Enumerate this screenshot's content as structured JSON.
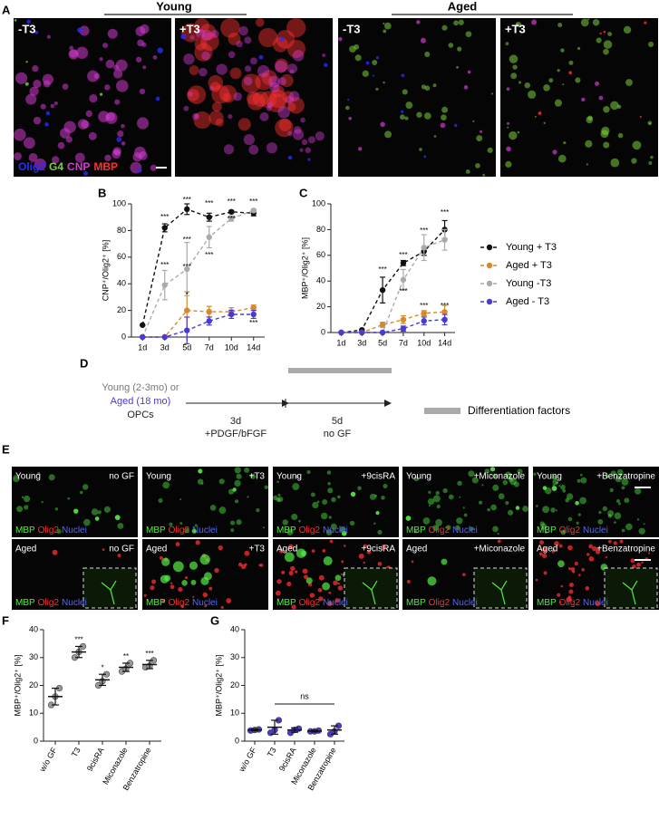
{
  "figure": {
    "panel_labels": [
      "A",
      "B",
      "C",
      "D",
      "E",
      "F",
      "G"
    ],
    "panel_a": {
      "groups": [
        "Young",
        "Aged"
      ],
      "images": [
        "-T3",
        "+T3",
        "-T3",
        "+T3"
      ],
      "channels": [
        {
          "name": "Olig2",
          "color": "#2b2bff"
        },
        {
          "name": "G4",
          "color": "#7ccf3a"
        },
        {
          "name": "CNP",
          "color": "#d23bd2"
        },
        {
          "name": "MBP",
          "color": "#ff3030"
        }
      ]
    },
    "panel_d": {
      "source_young": "Young (2-3mo) or",
      "source_aged": "Aged (18 mo)",
      "cells": "OPCs",
      "step1_time": "3d",
      "step1_medium": "+PDGF/bFGF",
      "step2_time": "5d",
      "step2_medium": "no GF",
      "legend": "Differentiation factors"
    },
    "panel_e": {
      "rows": [
        "Young",
        "Aged"
      ],
      "conditions": [
        "no GF",
        "+T3",
        "+9cisRA",
        "+Miconazole",
        "+Benzatropine"
      ],
      "channels": [
        {
          "name": "MBP",
          "color": "#55ee44"
        },
        {
          "name": "Olig2",
          "color": "#ff3030"
        },
        {
          "name": "Nuclei",
          "color": "#5566ff"
        }
      ]
    }
  },
  "chart_data": [
    {
      "type": "line",
      "ylabel": "CNP⁺/Olig2⁺ [%]",
      "categories": [
        "1d",
        "3d",
        "5d",
        "7d",
        "10d",
        "14d"
      ],
      "ylim": [
        0,
        100
      ],
      "yticks": [
        0,
        20,
        40,
        60,
        80,
        100
      ],
      "series": [
        {
          "color": "#111111",
          "values": [
            9,
            82,
            96,
            90,
            94,
            93
          ],
          "errors": [
            0,
            3,
            4,
            3,
            1,
            2
          ]
        },
        {
          "color": "#d4892a",
          "values": [
            0,
            0,
            20,
            19,
            19,
            22
          ],
          "errors": [
            0,
            0,
            14,
            4,
            3,
            2
          ]
        },
        {
          "color": "#aaaaaa",
          "values": [
            0,
            39,
            51,
            75,
            89,
            95
          ],
          "errors": [
            0,
            11,
            20,
            8,
            2,
            1
          ]
        },
        {
          "color": "#4a3bd0",
          "values": [
            0,
            0,
            5,
            12,
            17,
            17
          ],
          "errors": [
            0,
            0,
            10,
            3,
            3,
            3
          ]
        }
      ],
      "annotations": [
        "***",
        "***",
        "***",
        "***",
        "***",
        "*",
        "***",
        "***",
        "***",
        "***",
        "***",
        "***"
      ]
    },
    {
      "type": "line",
      "ylabel": "MBP⁺/Olig2⁺ [%]",
      "categories": [
        "1d",
        "3d",
        "5d",
        "7d",
        "10d",
        "14d"
      ],
      "ylim": [
        0,
        100
      ],
      "yticks": [
        0,
        20,
        40,
        60,
        80,
        100
      ],
      "legend": "right",
      "series": [
        {
          "name": "Young + T3",
          "color": "#111111",
          "values": [
            0,
            2,
            33,
            54,
            63,
            80
          ],
          "errors": [
            0,
            0,
            10,
            2,
            3,
            7
          ]
        },
        {
          "name": "Aged + T3",
          "color": "#d4892a",
          "values": [
            0,
            0,
            6,
            10,
            15,
            16
          ],
          "errors": [
            0,
            0,
            2,
            3,
            2,
            5
          ]
        },
        {
          "name": "Young -T3",
          "color": "#aaaaaa",
          "values": [
            0,
            0,
            0,
            41,
            66,
            72
          ],
          "errors": [
            0,
            0,
            0,
            8,
            10,
            8
          ]
        },
        {
          "name": "Aged - T3",
          "color": "#4a3bd0",
          "values": [
            0,
            0,
            0,
            3,
            9,
            10
          ],
          "errors": [
            0,
            0,
            0,
            2,
            3,
            4
          ]
        }
      ],
      "annotations": [
        "***",
        "***",
        "***",
        "***",
        "***",
        "***",
        "***"
      ]
    },
    {
      "type": "dot",
      "ylabel": "MBP⁺/Olig2⁺ [%]",
      "categories": [
        "w/o GF",
        "T3",
        "9cisRA",
        "Miconazole",
        "Benzatropine"
      ],
      "ylim": [
        0,
        40
      ],
      "yticks": [
        0,
        10,
        20,
        30,
        40
      ],
      "color": "#999999",
      "points": [
        [
          13,
          16,
          19
        ],
        [
          30,
          32,
          34
        ],
        [
          20,
          21.5,
          24
        ],
        [
          25,
          26,
          28
        ],
        [
          26.5,
          27,
          29
        ]
      ],
      "means": [
        16,
        32,
        22,
        26.5,
        27.5
      ],
      "errors": [
        3,
        2,
        2,
        1.5,
        1.5
      ],
      "annotations": [
        "***",
        "*",
        "**",
        "***"
      ]
    },
    {
      "type": "dot",
      "ylabel": "MBP⁺/Olig2⁺ [%]",
      "categories": [
        "w/o GF",
        "T3",
        "9cisRA",
        "Miconazole",
        "Benzatropine"
      ],
      "ylim": [
        0,
        40
      ],
      "yticks": [
        0,
        10,
        20,
        30,
        40
      ],
      "color": "#4a3bd0",
      "points": [
        [
          3.8,
          4,
          4.2
        ],
        [
          3,
          4,
          7.5
        ],
        [
          3,
          4,
          4.5
        ],
        [
          3.5,
          3.5,
          3.8
        ],
        [
          2.5,
          3.5,
          5.5
        ]
      ],
      "means": [
        4,
        5,
        4,
        3.6,
        4
      ],
      "errors": [
        0.3,
        2.5,
        0.8,
        0.3,
        1.5
      ],
      "annotations": [
        "ns"
      ]
    }
  ]
}
